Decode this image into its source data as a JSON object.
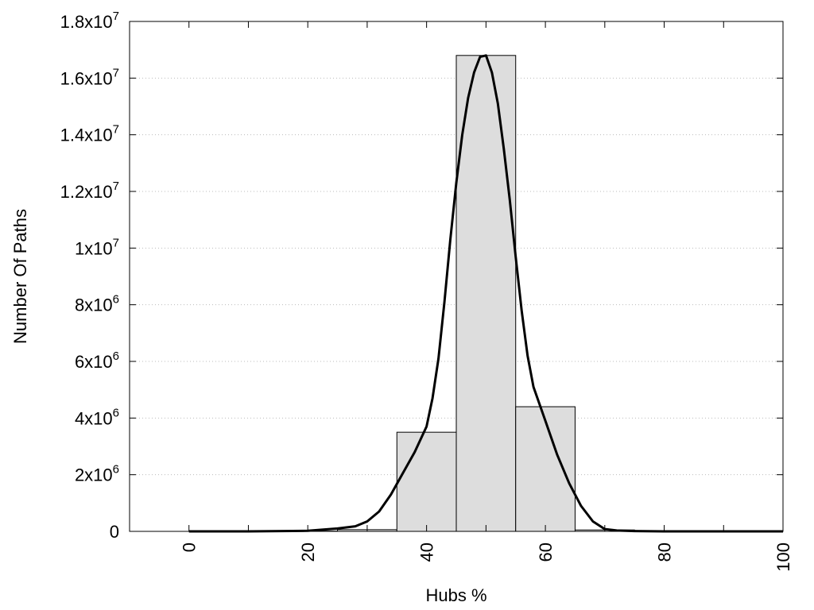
{
  "chart_data": {
    "type": "bar",
    "title": "",
    "xlabel": "Hubs %",
    "ylabel": "Number Of Paths",
    "xlim": [
      -10,
      100
    ],
    "ylim": [
      0,
      18000000
    ],
    "grid": {
      "horizontal": true,
      "vertical": false,
      "style": "dotted"
    },
    "x_ticks": [
      {
        "value": 0,
        "label": "0"
      },
      {
        "value": 20,
        "label": "20"
      },
      {
        "value": 40,
        "label": "40"
      },
      {
        "value": 60,
        "label": "60"
      },
      {
        "value": 80,
        "label": "80"
      },
      {
        "value": 100,
        "label": "100"
      }
    ],
    "y_ticks": [
      {
        "value": 0,
        "mant": "0",
        "exp": ""
      },
      {
        "value": 2000000,
        "mant": "2x10",
        "exp": "6"
      },
      {
        "value": 4000000,
        "mant": "4x10",
        "exp": "6"
      },
      {
        "value": 6000000,
        "mant": "6x10",
        "exp": "6"
      },
      {
        "value": 8000000,
        "mant": "8x10",
        "exp": "6"
      },
      {
        "value": 10000000,
        "mant": "1x10",
        "exp": "7"
      },
      {
        "value": 12000000,
        "mant": "1.2x10",
        "exp": "7"
      },
      {
        "value": 14000000,
        "mant": "1.4x10",
        "exp": "7"
      },
      {
        "value": 16000000,
        "mant": "1.6x10",
        "exp": "7"
      },
      {
        "value": 18000000,
        "mant": "1.8x10",
        "exp": "7"
      }
    ],
    "bars": [
      {
        "x0": -5,
        "x1": 5,
        "value": 0
      },
      {
        "x0": 5,
        "x1": 15,
        "value": 0
      },
      {
        "x0": 15,
        "x1": 25,
        "value": 10000
      },
      {
        "x0": 25,
        "x1": 35,
        "value": 60000
      },
      {
        "x0": 35,
        "x1": 45,
        "value": 3500000
      },
      {
        "x0": 45,
        "x1": 55,
        "value": 16800000
      },
      {
        "x0": 55,
        "x1": 65,
        "value": 4400000
      },
      {
        "x0": 65,
        "x1": 75,
        "value": 50000
      },
      {
        "x0": 75,
        "x1": 85,
        "value": 0
      },
      {
        "x0": 85,
        "x1": 95,
        "value": 0
      },
      {
        "x0": 95,
        "x1": 105,
        "value": 0
      }
    ],
    "fit_curve": {
      "x": [
        0,
        10,
        20,
        25,
        28,
        30,
        32,
        34,
        36,
        38,
        40,
        41,
        42,
        43,
        44,
        45,
        46,
        47,
        48,
        49,
        50,
        51,
        52,
        53,
        54,
        55,
        56,
        57,
        58,
        59,
        60,
        62,
        64,
        66,
        68,
        70,
        72,
        75,
        80,
        90,
        100
      ],
      "y": [
        0,
        0,
        20000,
        100000,
        180000,
        350000,
        700000,
        1300000,
        2050000,
        2800000,
        3700000,
        4700000,
        6100000,
        8100000,
        10300000,
        12300000,
        14000000,
        15300000,
        16200000,
        16750000,
        16800000,
        16200000,
        15100000,
        13500000,
        11700000,
        9700000,
        7800000,
        6200000,
        5100000,
        4500000,
        3900000,
        2700000,
        1700000,
        900000,
        350000,
        80000,
        30000,
        10000,
        0,
        0,
        0
      ]
    },
    "colors": {
      "bar_fill": "#dddddd",
      "bar_stroke": "#000000",
      "curve": "#000000",
      "grid": "#bbbbbb"
    }
  }
}
